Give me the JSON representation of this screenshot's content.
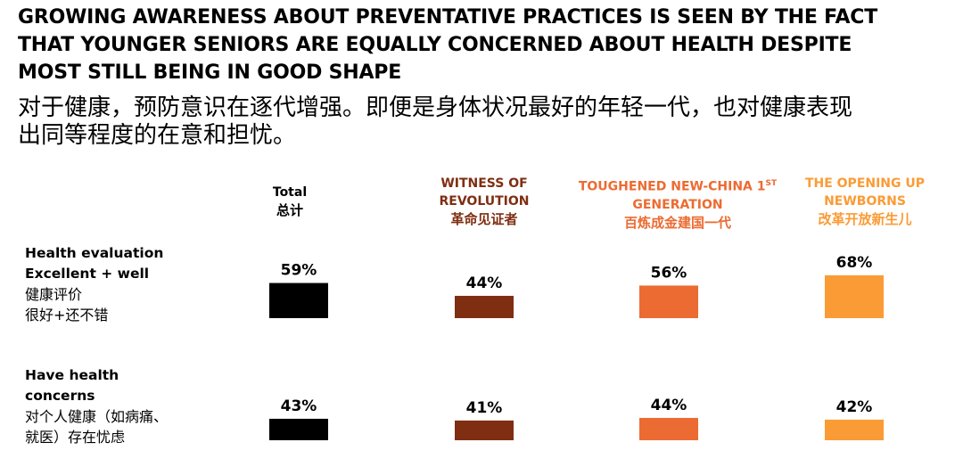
{
  "title": {
    "en_lines": [
      "GROWING AWARENESS ABOUT PREVENTATIVE PRACTICES IS SEEN BY THE FACT",
      "THAT YOUNGER SENIORS ARE EQUALLY CONCERNED ABOUT HEALTH DESPITE",
      "MOST STILL BEING IN GOOD SHAPE"
    ],
    "cn_lines": [
      "对于健康，预防意识在逐代增强。即便是身体状况最好的年轻一代，也对健康表现",
      "出同等程度的在意和担忧。"
    ]
  },
  "columns": [
    {
      "en_lines": [
        "Total"
      ],
      "cn": "总计",
      "color": "#000000"
    },
    {
      "en_lines": [
        "WITNESS OF",
        "REVOLUTION"
      ],
      "cn": "革命见证者",
      "color": "#7f2e12"
    },
    {
      "en_lines": [
        "TOUGHENED NEW-CHINA 1ST",
        "GENERATION"
      ],
      "cn": "百炼成金建国一代",
      "color": "#ec6b32"
    },
    {
      "en_lines": [
        "THE OPENING UP",
        "NEWBORNS"
      ],
      "cn": "改革开放新生儿",
      "color": "#fb9b35"
    }
  ],
  "rows": [
    {
      "en_lines": [
        "Health evaluation",
        "Excellent + well"
      ],
      "cn_lines": [
        "健康评价",
        "很好+还不错"
      ]
    },
    {
      "en_lines": [
        "Have health",
        "concerns"
      ],
      "cn_lines": [
        "对个人健康（如病痛、",
        "就医）存在忧虑"
      ]
    }
  ],
  "chart_data": {
    "type": "bar",
    "categories": [
      "Total",
      "WITNESS OF REVOLUTION",
      "TOUGHENED NEW-CHINA 1ST GENERATION",
      "THE OPENING UP NEWBORNS"
    ],
    "series": [
      {
        "name": "Health evaluation Excellent + well",
        "values": [
          59,
          44,
          56,
          68
        ],
        "labels": [
          "59%",
          "44%",
          "56%",
          "68%"
        ]
      },
      {
        "name": "Have health concerns",
        "values": [
          43,
          41,
          44,
          42
        ],
        "labels": [
          "43%",
          "41%",
          "44%",
          "42%"
        ]
      }
    ],
    "colors": [
      "#000000",
      "#7f2e12",
      "#ec6b32",
      "#fb9b35"
    ],
    "unit": "%"
  }
}
